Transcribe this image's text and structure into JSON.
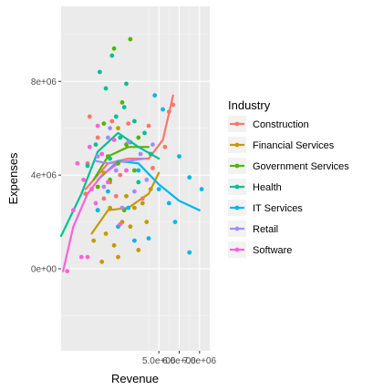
{
  "chart_data": {
    "type": "scatter",
    "title": "",
    "xlabel": "Revenue",
    "ylabel": "Expenses",
    "xlim": [
      200000,
      7500000
    ],
    "ylim": [
      -3500000,
      11200000
    ],
    "x_ticks": [
      5000000,
      6000000,
      7000000
    ],
    "x_tick_labels": [
      "5.0e+06",
      "6.0e+06",
      "7.0e+06"
    ],
    "y_ticks": [
      0,
      4000000,
      8000000
    ],
    "y_tick_labels": [
      "0e+00",
      "4e+06",
      "8e+06"
    ],
    "grid": true,
    "legend_title": "Industry",
    "legend_position": "right",
    "series": [
      {
        "name": "Construction",
        "color": "#F8766D",
        "points": [
          [
            1400000,
            3200000
          ],
          [
            1500000,
            4500000
          ],
          [
            1600000,
            6500000
          ],
          [
            2000000,
            5600000
          ],
          [
            2300000,
            3000000
          ],
          [
            2700000,
            6300000
          ],
          [
            2900000,
            3100000
          ],
          [
            3100000,
            4000000
          ],
          [
            3500000,
            6200000
          ],
          [
            4200000,
            3000000
          ],
          [
            4500000,
            6100000
          ],
          [
            4700000,
            4300000
          ],
          [
            5300000,
            5200000
          ],
          [
            5500000,
            6700000
          ],
          [
            5700000,
            7000000
          ]
        ],
        "trend": [
          [
            1400000,
            3400000
          ],
          [
            2500000,
            4500000
          ],
          [
            3500000,
            4700000
          ],
          [
            4500000,
            4700000
          ],
          [
            5200000,
            5500000
          ],
          [
            5700000,
            7400000
          ]
        ]
      },
      {
        "name": "Financial Services",
        "color": "#C49A00",
        "points": [
          [
            1800000,
            1200000
          ],
          [
            2000000,
            2500000
          ],
          [
            2200000,
            300000
          ],
          [
            2400000,
            1500000
          ],
          [
            2600000,
            2600000
          ],
          [
            2800000,
            1000000
          ],
          [
            3000000,
            500000
          ],
          [
            3200000,
            2000000
          ],
          [
            3400000,
            3100000
          ],
          [
            3600000,
            1800000
          ],
          [
            3800000,
            2600000
          ],
          [
            4000000,
            800000
          ],
          [
            4200000,
            2800000
          ],
          [
            4400000,
            2000000
          ],
          [
            4600000,
            3400000
          ],
          [
            2300000,
            4100000
          ],
          [
            3000000,
            6000000
          ],
          [
            2600000,
            3700000
          ]
        ],
        "trend": [
          [
            1700000,
            1500000
          ],
          [
            2500000,
            2500000
          ],
          [
            3500000,
            2600000
          ],
          [
            4500000,
            3200000
          ],
          [
            5000000,
            4100000
          ]
        ]
      },
      {
        "name": "Government Services",
        "color": "#53B400",
        "points": [
          [
            2000000,
            3500000
          ],
          [
            2300000,
            6200000
          ],
          [
            2600000,
            3800000
          ],
          [
            2800000,
            9400000
          ],
          [
            3000000,
            4500000
          ],
          [
            3200000,
            7100000
          ],
          [
            3400000,
            5300000
          ],
          [
            3600000,
            9800000
          ],
          [
            3800000,
            4200000
          ],
          [
            4000000,
            5600000
          ],
          [
            3300000,
            2500000
          ],
          [
            2500000,
            4800000
          ]
        ],
        "trend": [
          [
            1800000,
            3800000
          ],
          [
            2500000,
            4800000
          ],
          [
            3500000,
            5200000
          ],
          [
            4500000,
            5200000
          ]
        ]
      },
      {
        "name": "Health",
        "color": "#00C094",
        "points": [
          [
            1500000,
            4400000
          ],
          [
            1900000,
            5300000
          ],
          [
            2100000,
            8400000
          ],
          [
            2400000,
            7700000
          ],
          [
            2600000,
            4700000
          ],
          [
            2900000,
            6500000
          ],
          [
            3100000,
            5600000
          ],
          [
            3400000,
            7900000
          ],
          [
            3600000,
            5400000
          ],
          [
            3800000,
            6300000
          ],
          [
            4000000,
            3700000
          ],
          [
            4300000,
            5800000
          ],
          [
            4600000,
            4900000
          ],
          [
            2700000,
            9100000
          ],
          [
            3300000,
            6900000
          ]
        ],
        "trend": [
          [
            200000,
            1400000
          ],
          [
            1200000,
            3200000
          ],
          [
            2000000,
            5000000
          ],
          [
            3000000,
            5800000
          ],
          [
            4000000,
            5200000
          ],
          [
            5000000,
            4700000
          ]
        ]
      },
      {
        "name": "IT Services",
        "color": "#00B6EB",
        "points": [
          [
            2000000,
            2500000
          ],
          [
            2500000,
            3300000
          ],
          [
            3000000,
            1800000
          ],
          [
            3500000,
            2600000
          ],
          [
            4000000,
            4200000
          ],
          [
            4500000,
            1300000
          ],
          [
            5000000,
            3400000
          ],
          [
            5500000,
            2800000
          ],
          [
            6000000,
            4800000
          ],
          [
            6500000,
            3900000
          ],
          [
            6500000,
            700000
          ],
          [
            7100000,
            3400000
          ],
          [
            5200000,
            6800000
          ],
          [
            4800000,
            7400000
          ],
          [
            3800000,
            1200000
          ],
          [
            5800000,
            2000000
          ]
        ],
        "trend": [
          [
            2000000,
            3800000
          ],
          [
            3000000,
            4600000
          ],
          [
            4000000,
            4500000
          ],
          [
            5000000,
            3600000
          ],
          [
            6000000,
            2900000
          ],
          [
            7000000,
            2500000
          ]
        ]
      },
      {
        "name": "Retail",
        "color": "#A58AFF",
        "points": [
          [
            2000000,
            4800000
          ],
          [
            2300000,
            3500000
          ],
          [
            2600000,
            6000000
          ],
          [
            2900000,
            4200000
          ],
          [
            3200000,
            2600000
          ],
          [
            3500000,
            5400000
          ],
          [
            3800000,
            3300000
          ],
          [
            4100000,
            4900000
          ],
          [
            4400000,
            3800000
          ],
          [
            4700000,
            5300000
          ],
          [
            2500000,
            5600000
          ]
        ],
        "trend": [
          [
            1900000,
            4600000
          ],
          [
            2500000,
            4500000
          ],
          [
            3500000,
            4600000
          ],
          [
            4300000,
            4700000
          ]
        ]
      },
      {
        "name": "Software",
        "color": "#FB61D7",
        "points": [
          [
            500000,
            -100000
          ],
          [
            800000,
            2500000
          ],
          [
            1000000,
            4500000
          ],
          [
            1300000,
            3800000
          ],
          [
            1600000,
            5200000
          ],
          [
            1900000,
            2800000
          ],
          [
            2200000,
            4900000
          ],
          [
            2500000,
            3700000
          ],
          [
            2800000,
            5500000
          ],
          [
            3100000,
            1900000
          ],
          [
            3400000,
            4200000
          ],
          [
            1200000,
            500000
          ],
          [
            1500000,
            500000
          ],
          [
            1700000,
            3400000
          ],
          [
            2000000,
            6100000
          ]
        ],
        "trend": [
          [
            300000,
            -100000
          ],
          [
            800000,
            1800000
          ],
          [
            1500000,
            3200000
          ],
          [
            2200000,
            4000000
          ],
          [
            3000000,
            4500000
          ]
        ]
      }
    ]
  }
}
